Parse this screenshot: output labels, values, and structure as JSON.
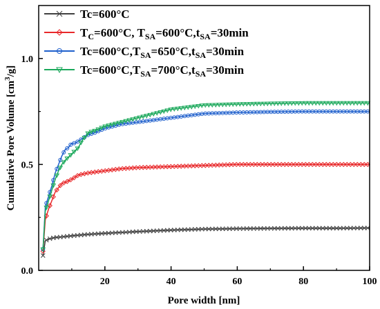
{
  "chart_data": {
    "type": "line",
    "xlabel": "Pore width [nm]",
    "ylabel": "Cumulative Pore Volume [cm³/g]",
    "xlim": [
      0,
      100
    ],
    "ylim": [
      0,
      1.25
    ],
    "x_ticks": [
      20,
      40,
      60,
      80,
      100
    ],
    "y_ticks": [
      0.0,
      0.5,
      1.0
    ],
    "x_tick_labels": [
      "20",
      "40",
      "60",
      "80",
      "100"
    ],
    "y_tick_labels": [
      "0.0",
      "0.5",
      "1.0"
    ],
    "legend_position": "top-left",
    "grid": false,
    "series": [
      {
        "name": "Tc=600°C",
        "legend": [
          {
            "t": "Tc=600°C"
          }
        ],
        "color": "#404040",
        "marker": "x",
        "x": [
          1.3,
          2,
          3,
          4,
          5,
          7,
          10,
          15,
          20,
          30,
          40,
          50,
          60,
          70,
          80,
          90,
          100
        ],
        "y": [
          0.07,
          0.14,
          0.148,
          0.152,
          0.155,
          0.158,
          0.163,
          0.17,
          0.175,
          0.183,
          0.19,
          0.195,
          0.197,
          0.198,
          0.199,
          0.199,
          0.2
        ]
      },
      {
        "name": "TC=600°C, TSA=600°C,tSA=30min",
        "legend": [
          {
            "t": "T"
          },
          {
            "t": "C",
            "sub": true
          },
          {
            "t": "=600°C,  T"
          },
          {
            "t": "SA",
            "sub": true
          },
          {
            "t": "=600°C,t"
          },
          {
            "t": "SA",
            "sub": true
          },
          {
            "t": "=30min"
          }
        ],
        "color": "#e8282a",
        "marker": "diamond",
        "x": [
          1.3,
          2,
          3,
          4,
          5,
          6,
          7,
          8,
          10,
          12,
          15,
          20,
          25,
          30,
          40,
          50,
          60,
          70,
          80,
          90,
          100
        ],
        "y": [
          0.09,
          0.24,
          0.29,
          0.33,
          0.37,
          0.39,
          0.41,
          0.415,
          0.43,
          0.45,
          0.46,
          0.47,
          0.48,
          0.485,
          0.49,
          0.495,
          0.5,
          0.5,
          0.5,
          0.5,
          0.5
        ]
      },
      {
        "name": "Tc=600°C,TSA=650°C,tSA=30min",
        "legend": [
          {
            "t": "Tc=600°C,T"
          },
          {
            "t": "SA",
            "sub": true
          },
          {
            "t": "=650°C,t"
          },
          {
            "t": "SA",
            "sub": true
          },
          {
            "t": "=30min"
          }
        ],
        "color": "#1e5fcc",
        "marker": "circle",
        "x": [
          1.3,
          2,
          3,
          4,
          5,
          6,
          7,
          8,
          9,
          10,
          11,
          12,
          13,
          14,
          15,
          17,
          20,
          25,
          30,
          40,
          50,
          60,
          70,
          80,
          90,
          100
        ],
        "y": [
          0.1,
          0.3,
          0.35,
          0.4,
          0.46,
          0.5,
          0.54,
          0.57,
          0.58,
          0.6,
          0.6,
          0.61,
          0.62,
          0.63,
          0.64,
          0.65,
          0.67,
          0.69,
          0.7,
          0.72,
          0.74,
          0.745,
          0.748,
          0.75,
          0.75,
          0.75
        ]
      },
      {
        "name": "Tc=600°C,TSA=700°C,tSA=30min",
        "legend": [
          {
            "t": "Tc=600°C,T"
          },
          {
            "t": "SA",
            "sub": true
          },
          {
            "t": "=700°C,t"
          },
          {
            "t": "SA",
            "sub": true
          },
          {
            "t": "=30min"
          }
        ],
        "color": "#1aa85a",
        "marker": "triangle-down",
        "x": [
          1.3,
          2,
          3,
          4,
          5,
          6,
          7,
          8,
          10,
          12,
          13,
          14,
          15,
          17,
          20,
          25,
          30,
          40,
          50,
          60,
          70,
          80,
          90,
          100
        ],
        "y": [
          0.1,
          0.28,
          0.33,
          0.38,
          0.43,
          0.47,
          0.5,
          0.52,
          0.55,
          0.58,
          0.61,
          0.63,
          0.65,
          0.66,
          0.68,
          0.7,
          0.72,
          0.76,
          0.78,
          0.785,
          0.788,
          0.79,
          0.79,
          0.79
        ]
      }
    ]
  }
}
